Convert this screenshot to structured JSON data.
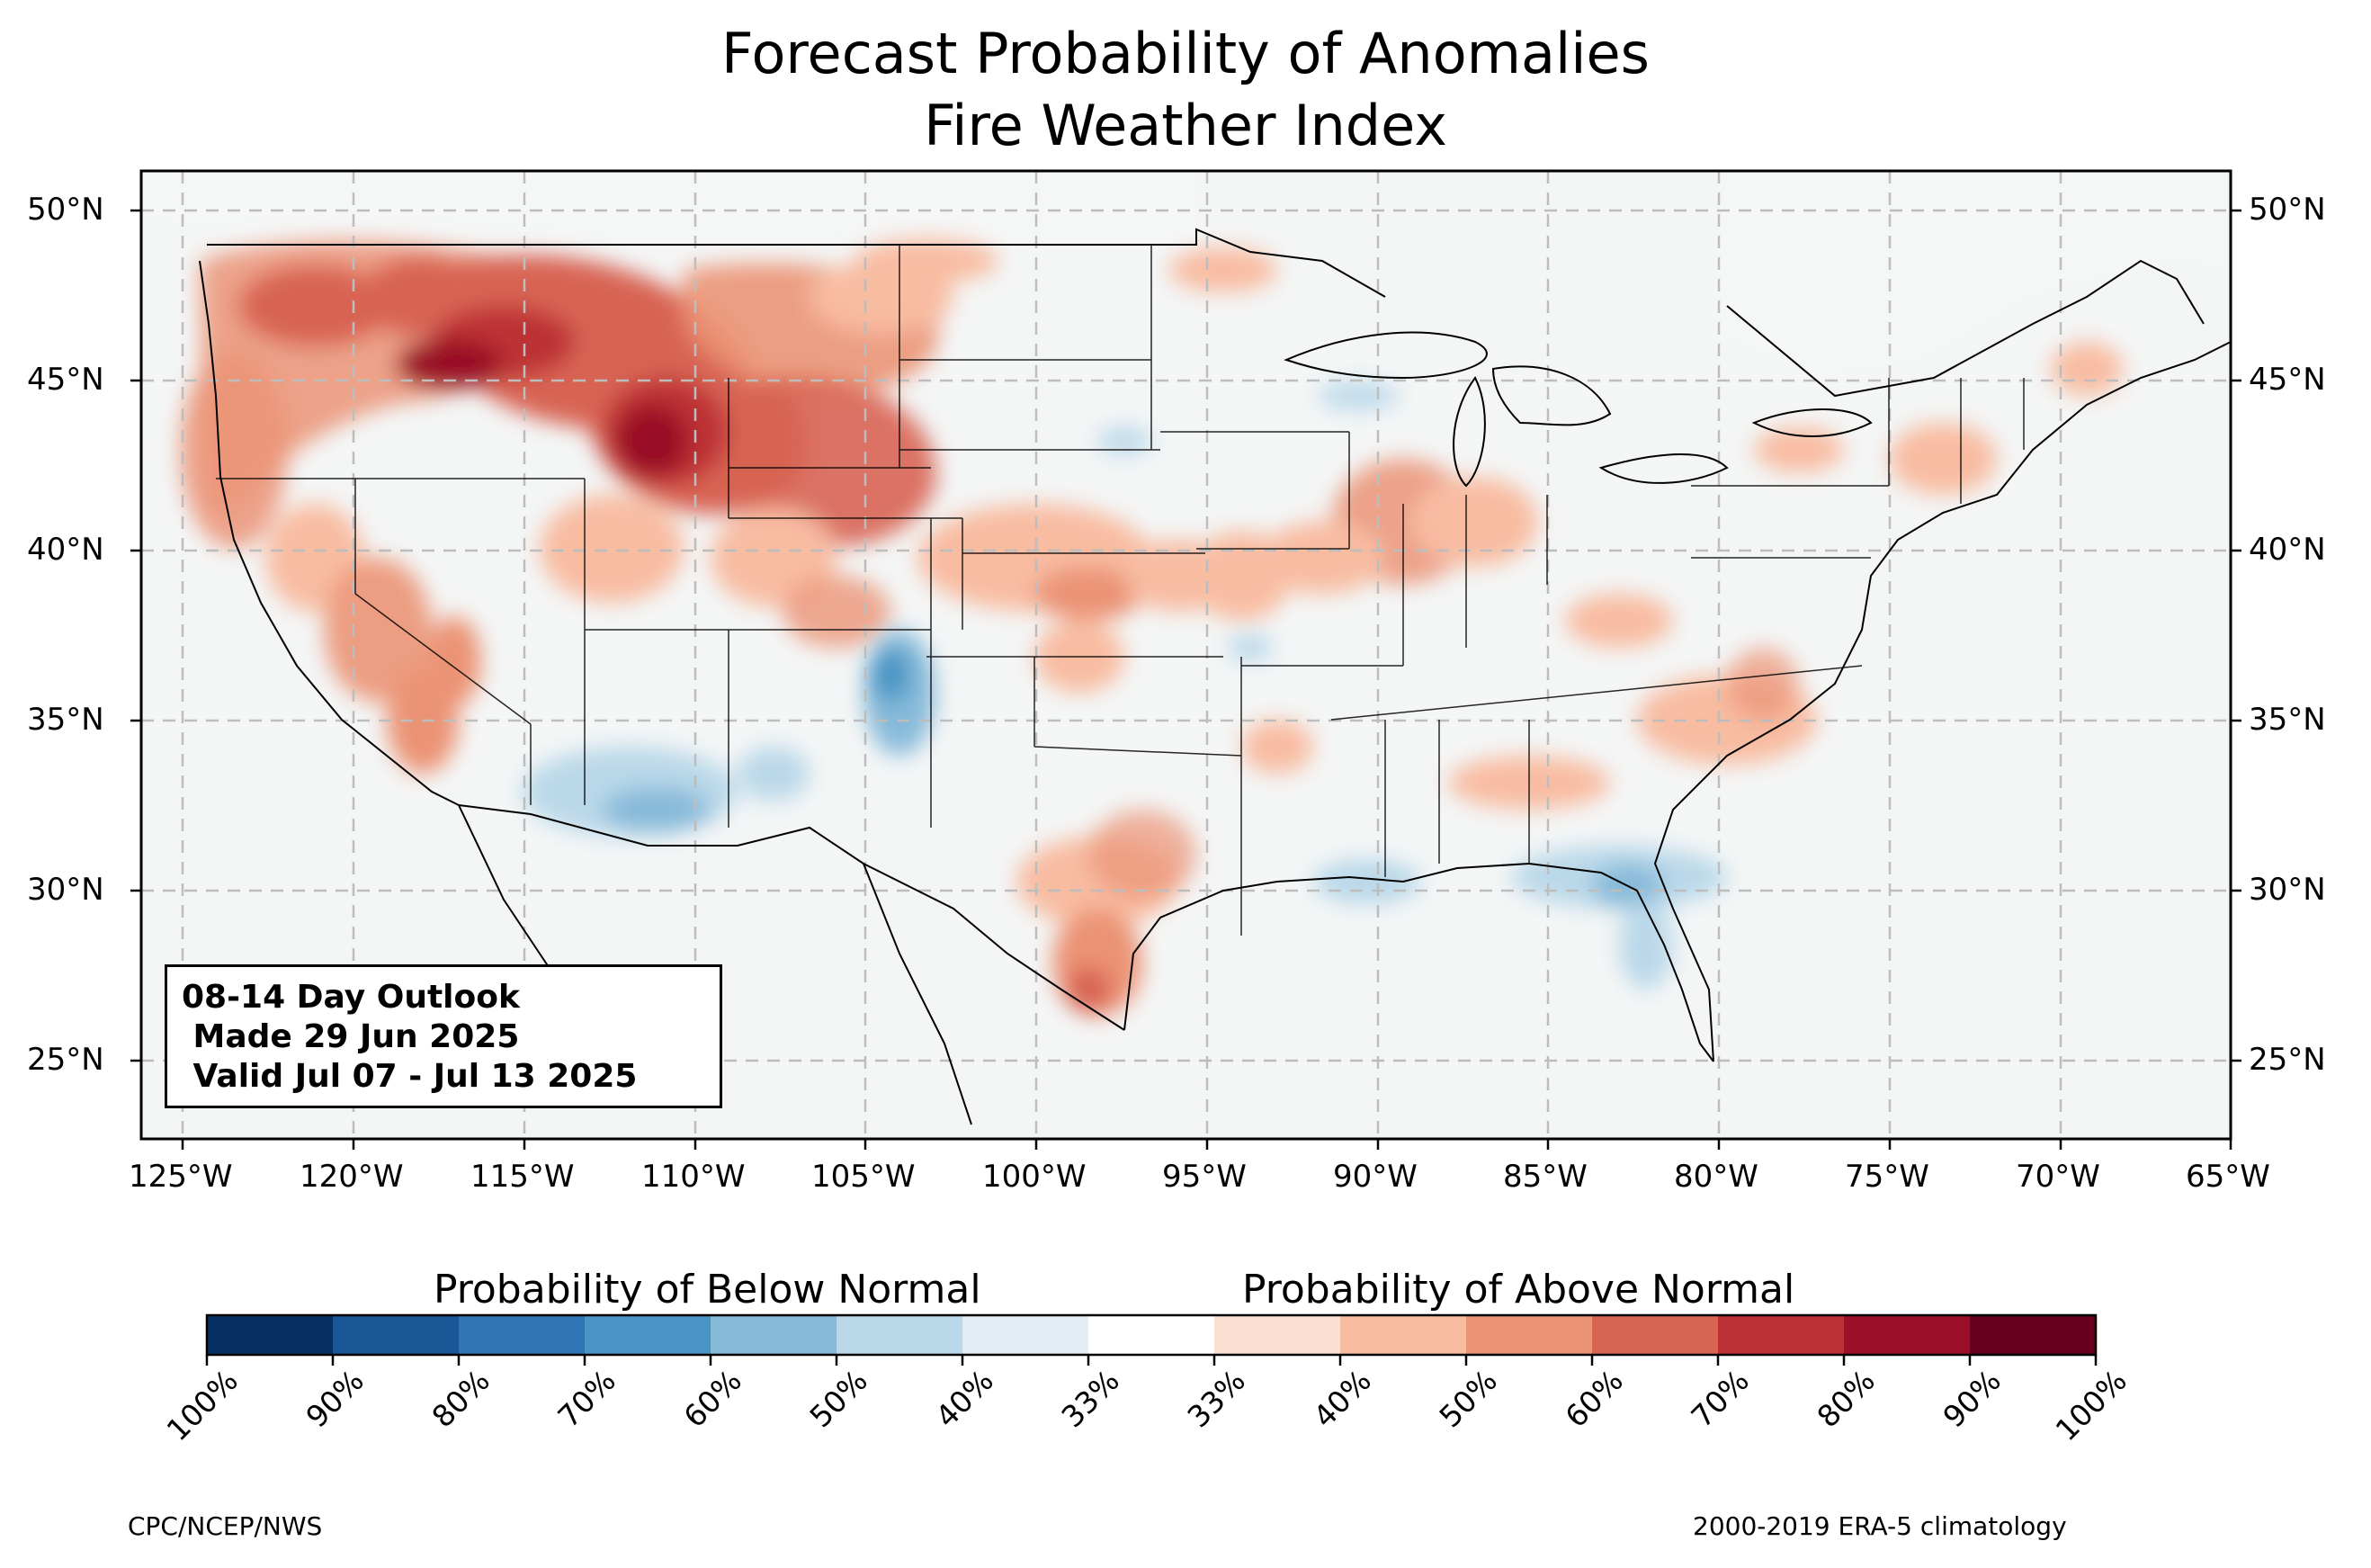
{
  "title": "Forecast Probability of Anomalies",
  "subtitle": "Fire Weather Index",
  "outlook": {
    "line1": "08-14 Day Outlook",
    "line2": " Made 29 Jun 2025",
    "line3": " Valid Jul 07 - Jul 13 2025"
  },
  "axes": {
    "lon_labels": [
      "125°W",
      "120°W",
      "115°W",
      "110°W",
      "105°W",
      "100°W",
      "95°W",
      "90°W",
      "85°W",
      "80°W",
      "75°W",
      "70°W",
      "65°W"
    ],
    "lat_labels": [
      "50°N",
      "45°N",
      "40°N",
      "35°N",
      "30°N",
      "25°N"
    ],
    "gridlines": true
  },
  "colorbar": {
    "below_title": "Probability of Below Normal",
    "above_title": "Probability of Above Normal",
    "tick_labels": [
      "100%",
      "90%",
      "80%",
      "70%",
      "60%",
      "50%",
      "40%",
      "33%",
      "33%",
      "40%",
      "50%",
      "60%",
      "70%",
      "80%",
      "90%",
      "100%"
    ],
    "colors": [
      "#053061",
      "#1a5596",
      "#2f74b4",
      "#4a95c5",
      "#86bad9",
      "#bad8e9",
      "#e1ecf3",
      "#ffffff",
      "#fbe0d2",
      "#f8bca1",
      "#eb9375",
      "#d86453",
      "#bd3035",
      "#9a1028",
      "#67001f"
    ]
  },
  "footer": {
    "left": "CPC/NCEP/NWS",
    "right": "2000-2019 ERA-5 climatology"
  },
  "colors": {
    "background": "#f5f7f7",
    "border": "#000000",
    "grid": "#bfbfbf"
  }
}
